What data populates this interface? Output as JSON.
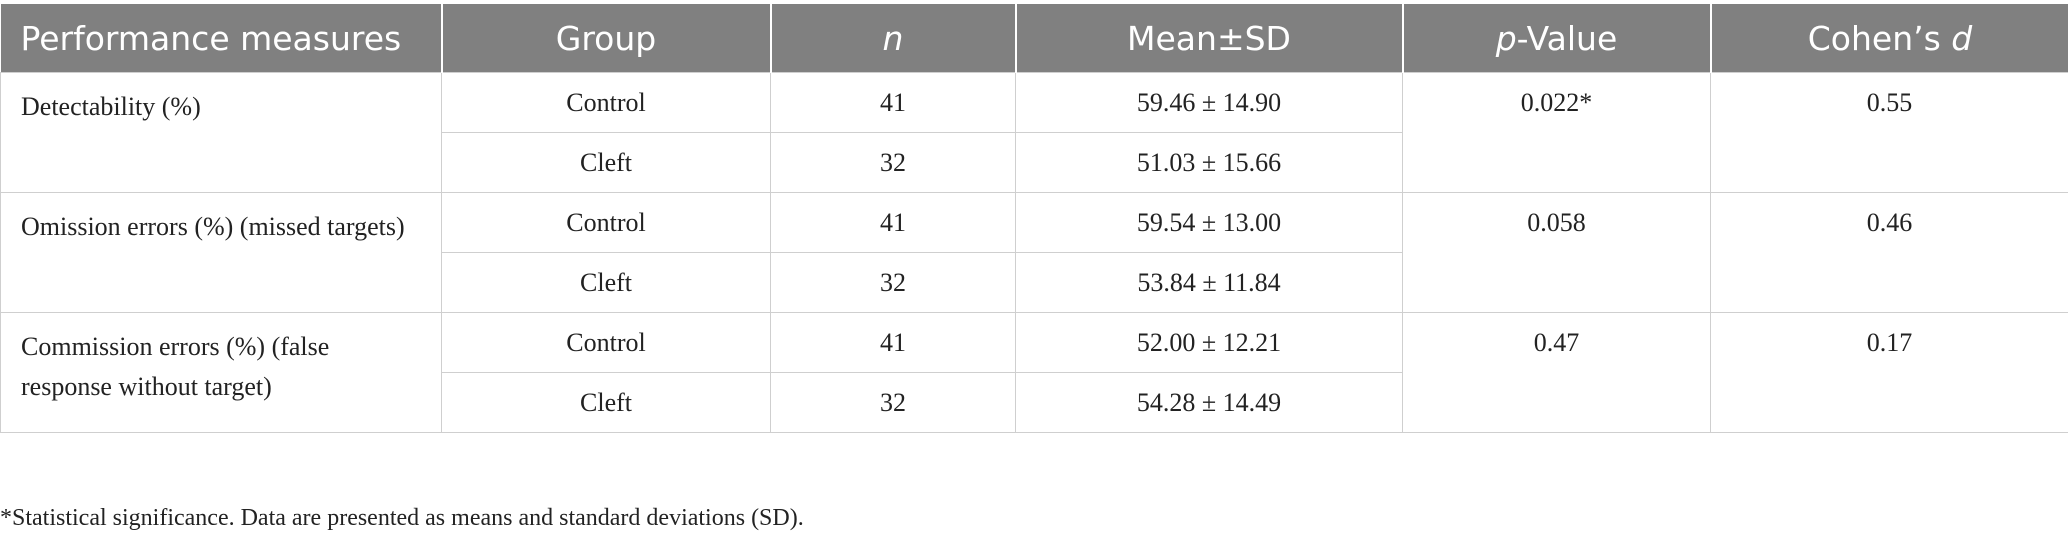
{
  "table": {
    "headers": {
      "measure": "Performance measures",
      "group": "Group",
      "n": "n",
      "mean_sd": "Mean±SD",
      "p_italic": "p",
      "p_rest": "-Value",
      "cohen_prefix": "Cohen’s ",
      "cohen_italic": "d"
    },
    "rows": [
      {
        "measure": "Detectability (%)",
        "p_value": "0.022*",
        "cohens_d": "0.55",
        "groups": [
          {
            "group": "Control",
            "n": "41",
            "mean_sd": "59.46 ± 14.90"
          },
          {
            "group": "Cleft",
            "n": "32",
            "mean_sd": "51.03 ± 15.66"
          }
        ]
      },
      {
        "measure": "Omission errors (%) (missed targets)",
        "p_value": "0.058",
        "cohens_d": "0.46",
        "groups": [
          {
            "group": "Control",
            "n": "41",
            "mean_sd": "59.54 ± 13.00"
          },
          {
            "group": "Cleft",
            "n": "32",
            "mean_sd": "53.84 ± 11.84"
          }
        ]
      },
      {
        "measure": "Commission errors (%) (false response without target)",
        "p_value": "0.47",
        "cohens_d": "0.17",
        "groups": [
          {
            "group": "Control",
            "n": "41",
            "mean_sd": "52.00 ± 12.21"
          },
          {
            "group": "Cleft",
            "n": "32",
            "mean_sd": "54.28 ± 14.49"
          }
        ]
      }
    ]
  },
  "footnote": "*Statistical significance. Data are presented as means and standard deviations (SD).",
  "colors": {
    "header_bg": "#808080",
    "header_text": "#ffffff",
    "grid": "#cfcfcf",
    "body_text": "#222222"
  }
}
